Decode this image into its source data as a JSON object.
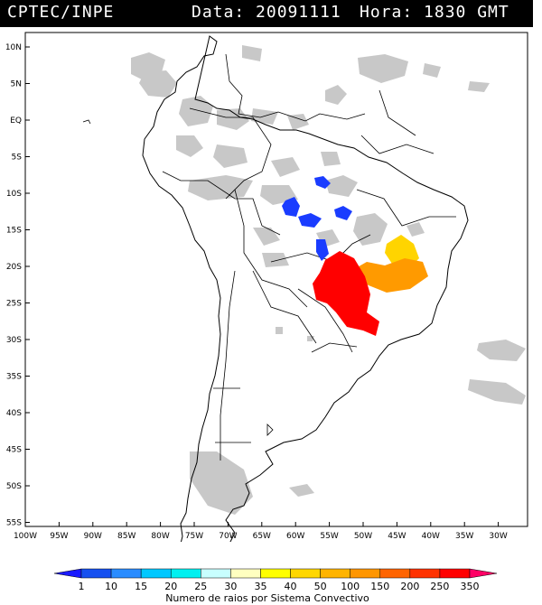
{
  "header": {
    "source": "CPTEC/INPE",
    "date_label": "Data:",
    "date_value": "20091111",
    "time_label": "Hora:",
    "time_value": "1830 GMT"
  },
  "map": {
    "lat_labels": [
      "10N",
      "5N",
      "EQ",
      "5S",
      "10S",
      "15S",
      "20S",
      "25S",
      "30S",
      "35S",
      "40S",
      "45S",
      "50S",
      "55S"
    ],
    "lon_labels": [
      "100W",
      "95W",
      "90W",
      "85W",
      "80W",
      "75W",
      "70W",
      "65W",
      "60W",
      "55W",
      "50W",
      "45W",
      "40W",
      "35W",
      "30W"
    ]
  },
  "legend": {
    "title": "Numero de raios por Sistema Convectivo",
    "labels": [
      "1",
      "10",
      "15",
      "20",
      "25",
      "30",
      "35",
      "40",
      "50",
      "100",
      "150",
      "200",
      "250",
      "350"
    ],
    "colors": [
      "#1a1aff",
      "#1650f0",
      "#2a8cff",
      "#00c8ff",
      "#00f0f0",
      "#c8ffff",
      "#ffffc0",
      "#ffff00",
      "#ffd700",
      "#ffb400",
      "#ff9600",
      "#ff6400",
      "#ff3200",
      "#ff0000",
      "#ff0066"
    ]
  },
  "colors": {
    "cloud": "#c8c8c8",
    "blue_cluster": "#1a3cff",
    "yellow_cluster": "#ffd400",
    "orange_cluster": "#ff9a00",
    "red_cluster": "#ff0000"
  }
}
